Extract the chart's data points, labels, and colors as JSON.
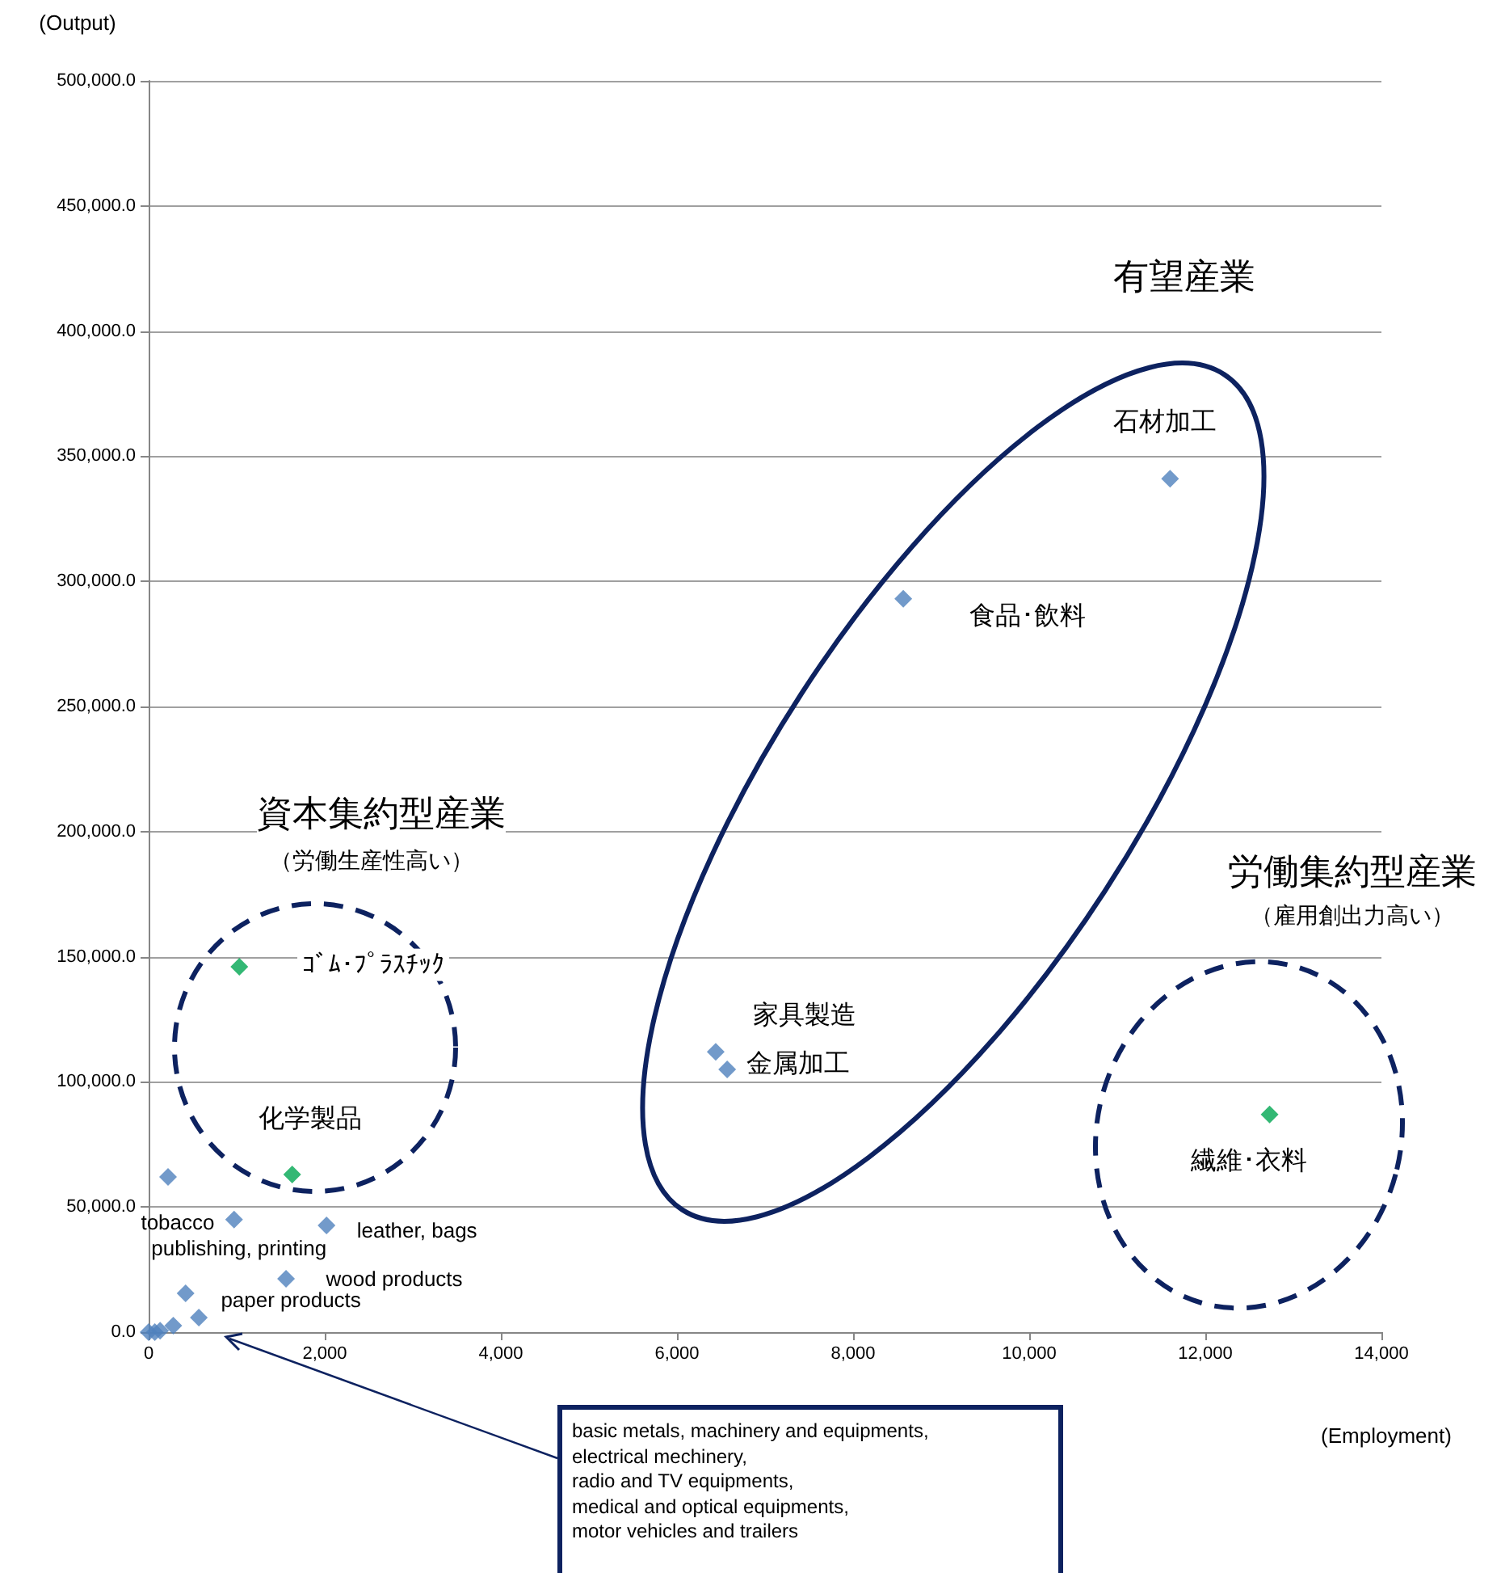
{
  "chart_data": {
    "type": "scatter",
    "xlabel": "(Employment)",
    "ylabel": "(Output)",
    "series": [
      {
        "color": "#4f81bd",
        "x": [
          11600,
          8570,
          6440,
          6570,
          220,
          970,
          2020,
          1560,
          420,
          570,
          280,
          0,
          70,
          130
        ],
        "values": [
          341000,
          293000,
          112000,
          105000,
          62000,
          45000,
          42600,
          21300,
          15500,
          5800,
          2600,
          0,
          0,
          600
        ]
      },
      {
        "color": "#00a651",
        "x": [
          12730,
          1030,
          1630
        ],
        "values": [
          87000,
          146000,
          63000
        ]
      }
    ],
    "xlim": [
      0,
      14000
    ],
    "xticks": [
      {
        "value": 0,
        "label": "0"
      },
      {
        "value": 2000,
        "label": "2,000"
      },
      {
        "value": 4000,
        "label": "4,000"
      },
      {
        "value": 6000,
        "label": "6,000"
      },
      {
        "value": 8000,
        "label": "8,000"
      },
      {
        "value": 10000,
        "label": "10,000"
      },
      {
        "value": 12000,
        "label": "12,000"
      },
      {
        "value": 14000,
        "label": "14,000"
      }
    ],
    "ylim": [
      0,
      500000
    ],
    "yticks": [
      {
        "value": 0,
        "label": "0.0"
      },
      {
        "value": 50000,
        "label": "50,000.0"
      },
      {
        "value": 100000,
        "label": "100,000.0"
      },
      {
        "value": 150000,
        "label": "150,000.0"
      },
      {
        "value": 200000,
        "label": "200,000.0"
      },
      {
        "value": 250000,
        "label": "250,000.0"
      },
      {
        "value": 300000,
        "label": "300,000.0"
      },
      {
        "value": 350000,
        "label": "350,000.0"
      },
      {
        "value": 400000,
        "label": "400,000.0"
      },
      {
        "value": 450000,
        "label": "450,000.0"
      },
      {
        "value": 500000,
        "label": "500,000.0"
      }
    ],
    "grid": "y",
    "marker": "diamond",
    "annotations": [
      {
        "text": "石材加工",
        "x": 11600,
        "y": 341000
      },
      {
        "text": "食品･飲料",
        "x": 8570,
        "y": 293000
      },
      {
        "text": "家具製造",
        "x": 6440,
        "y": 112000
      },
      {
        "text": "金属加工",
        "x": 6570,
        "y": 105000
      },
      {
        "text": "繊維･衣料",
        "x": 12730,
        "y": 87000
      },
      {
        "text": "ｺﾞﾑ･ﾌﾟﾗｽﾁｯｸ",
        "x": 1030,
        "y": 146000
      },
      {
        "text": "化学製品",
        "x": 1630,
        "y": 63000
      },
      {
        "text": "tobacco",
        "x": 220,
        "y": 62000
      },
      {
        "text": "publishing, printing",
        "x": 970,
        "y": 45000
      },
      {
        "text": "leather, bags",
        "x": 2020,
        "y": 42600
      },
      {
        "text": "wood products",
        "x": 1560,
        "y": 21300
      },
      {
        "text": "paper products",
        "x": 570,
        "y": 5800
      },
      "有望産業",
      "資本集約型産業",
      "（労働生産性高い）",
      "労働集約型産業",
      "（雇用創出力高い）",
      "basic metals, machinery and equipments,\nelectrical mechinery,\nradio and TV equipments,\nmedical and optical equipments,\nmotor vehicles and trailers"
    ]
  }
}
